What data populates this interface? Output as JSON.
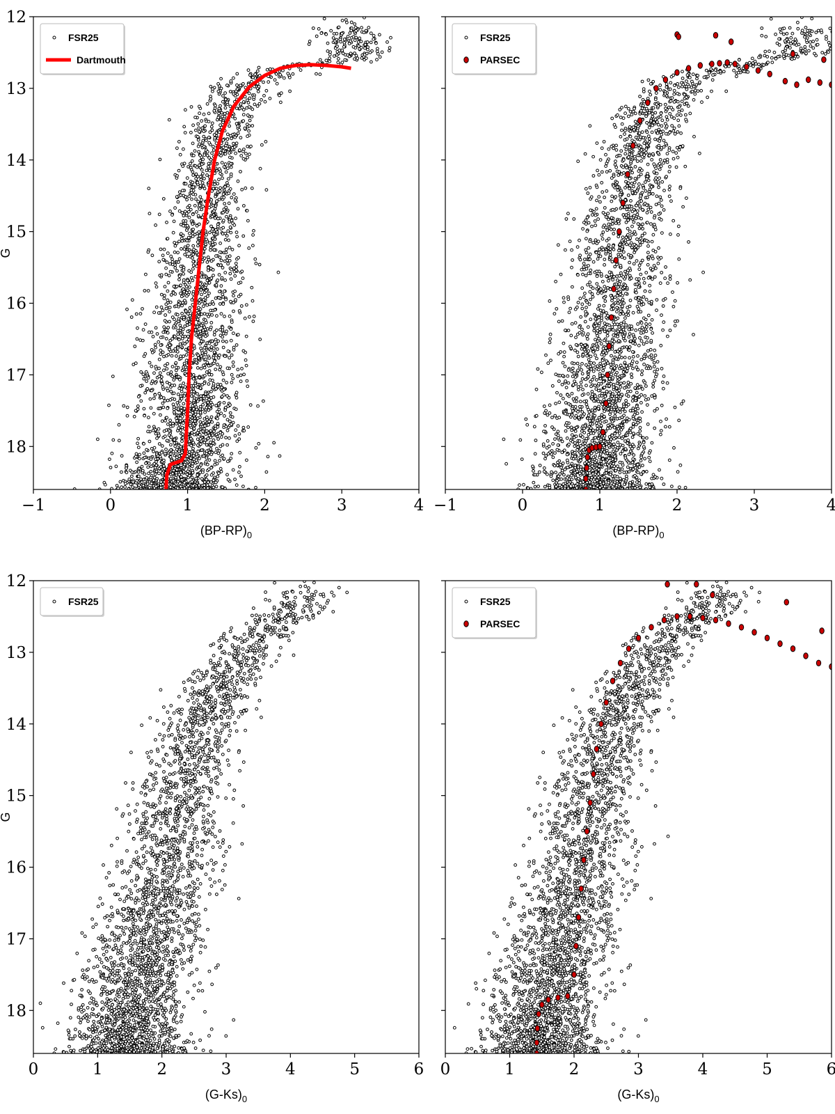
{
  "chart_data": [
    {
      "type": "scatter",
      "panel": "top-left",
      "xlabel": "(BP-RP)",
      "xlabel_sub": "0",
      "ylabel": "G",
      "xlim": [
        -1,
        4
      ],
      "ylim": [
        18.6,
        12
      ],
      "y_inverted": true,
      "xticks": [
        "−1",
        "0",
        "1",
        "2",
        "3",
        "4"
      ],
      "yticks": [
        "12",
        "13",
        "14",
        "15",
        "16",
        "17",
        "18"
      ],
      "legend_position": "top-left",
      "series": [
        {
          "name": "FSR25",
          "kind": "points",
          "color": "#000000",
          "spine": [
            [
              0.8,
              18.6
            ],
            [
              0.85,
              18.3
            ],
            [
              1.0,
              18.0
            ],
            [
              1.05,
              17.0
            ],
            [
              1.12,
              16.0
            ],
            [
              1.2,
              15.0
            ],
            [
              1.3,
              14.0
            ],
            [
              1.5,
              13.3
            ],
            [
              1.8,
              12.9
            ],
            [
              2.4,
              12.7
            ],
            [
              3.1,
              12.6
            ]
          ],
          "spread": 0.28
        },
        {
          "name": "Dartmouth",
          "kind": "line",
          "color": "#ff0000",
          "x": [
            0.72,
            0.73,
            0.78,
            0.92,
            0.97,
            1.0,
            1.02,
            1.05,
            1.1,
            1.15,
            1.2,
            1.27,
            1.35,
            1.45,
            1.6,
            1.8,
            2.0,
            2.2,
            2.4,
            2.6,
            2.8,
            3.0,
            3.12
          ],
          "y": [
            18.6,
            18.4,
            18.25,
            18.2,
            18.1,
            17.5,
            17.0,
            16.5,
            16.0,
            15.5,
            15.0,
            14.5,
            14.0,
            13.6,
            13.25,
            12.98,
            12.82,
            12.72,
            12.68,
            12.67,
            12.68,
            12.7,
            12.72
          ]
        }
      ]
    },
    {
      "type": "scatter",
      "panel": "top-right",
      "xlabel": "(BP-RP)",
      "xlabel_sub": "0",
      "ylabel": "",
      "xlim": [
        -1,
        4
      ],
      "ylim": [
        18.6,
        12
      ],
      "y_inverted": true,
      "xticks": [
        "−1",
        "0",
        "1",
        "2",
        "3",
        "4"
      ],
      "yticks": [],
      "legend_position": "top-left",
      "series": [
        {
          "name": "FSR25",
          "kind": "points",
          "color": "#000000",
          "spine": [
            [
              0.95,
              18.6
            ],
            [
              0.98,
              18.2
            ],
            [
              1.05,
              17.5
            ],
            [
              1.15,
              16.5
            ],
            [
              1.25,
              15.5
            ],
            [
              1.35,
              14.8
            ],
            [
              1.5,
              14.0
            ],
            [
              1.7,
              13.3
            ],
            [
              2.1,
              12.9
            ],
            [
              2.8,
              12.7
            ],
            [
              3.6,
              12.5
            ]
          ],
          "spread": 0.3
        },
        {
          "name": "PARSEC",
          "kind": "markers",
          "color": "#cc0000",
          "x": [
            0.82,
            0.82,
            0.83,
            0.84,
            0.86,
            0.9,
            0.95,
            1.0,
            1.04,
            1.08,
            1.1,
            1.12,
            1.15,
            1.18,
            1.21,
            1.25,
            1.3,
            1.36,
            1.43,
            1.52,
            1.62,
            1.73,
            1.85,
            2.0,
            2.15,
            2.3,
            2.45,
            2.55,
            2.65,
            2.75,
            2.9,
            3.05,
            3.2,
            3.4,
            3.55,
            3.7,
            3.85,
            4.0,
            2.0,
            2.02,
            2.5,
            2.7,
            3.5,
            3.9
          ],
          "y": [
            18.6,
            18.45,
            18.3,
            18.15,
            18.05,
            18.02,
            18.01,
            18.0,
            17.8,
            17.4,
            17.0,
            16.6,
            16.2,
            15.8,
            15.4,
            15.0,
            14.6,
            14.2,
            13.8,
            13.45,
            13.2,
            13.0,
            12.88,
            12.78,
            12.72,
            12.68,
            12.66,
            12.65,
            12.64,
            12.66,
            12.7,
            12.75,
            12.8,
            12.9,
            12.95,
            12.88,
            12.92,
            12.95,
            12.25,
            12.28,
            12.26,
            12.35,
            12.52,
            12.6
          ]
        }
      ]
    },
    {
      "type": "scatter",
      "panel": "bottom-left",
      "xlabel": "(G-Ks)",
      "xlabel_sub": "0",
      "ylabel": "G",
      "xlim": [
        0,
        6
      ],
      "ylim": [
        18.6,
        12
      ],
      "y_inverted": true,
      "xticks": [
        "0",
        "1",
        "2",
        "3",
        "4",
        "5",
        "6"
      ],
      "yticks": [
        "12",
        "13",
        "14",
        "15",
        "16",
        "17",
        "18"
      ],
      "legend_position": "top-left",
      "series": [
        {
          "name": "FSR25",
          "kind": "points",
          "color": "#000000",
          "spine": [
            [
              1.5,
              18.6
            ],
            [
              1.55,
              18.0
            ],
            [
              1.7,
              17.3
            ],
            [
              1.95,
              16.5
            ],
            [
              2.2,
              15.5
            ],
            [
              2.35,
              14.8
            ],
            [
              2.6,
              14.0
            ],
            [
              3.0,
              13.3
            ],
            [
              3.5,
              12.8
            ],
            [
              4.2,
              12.3
            ]
          ],
          "spread": 0.35
        }
      ]
    },
    {
      "type": "scatter",
      "panel": "bottom-right",
      "xlabel": "(G-Ks)",
      "xlabel_sub": "0",
      "ylabel": "",
      "xlim": [
        0,
        6
      ],
      "ylim": [
        18.6,
        12
      ],
      "y_inverted": true,
      "xticks": [
        "0",
        "1",
        "2",
        "3",
        "4",
        "5",
        "6"
      ],
      "yticks": [],
      "legend_position": "top-left",
      "series": [
        {
          "name": "FSR25",
          "kind": "points",
          "color": "#000000",
          "spine": [
            [
              1.5,
              18.6
            ],
            [
              1.55,
              18.0
            ],
            [
              1.7,
              17.3
            ],
            [
              1.95,
              16.5
            ],
            [
              2.2,
              15.5
            ],
            [
              2.35,
              14.8
            ],
            [
              2.6,
              14.0
            ],
            [
              3.0,
              13.3
            ],
            [
              3.5,
              12.8
            ],
            [
              4.2,
              12.3
            ]
          ],
          "spread": 0.35
        },
        {
          "name": "PARSEC",
          "kind": "markers",
          "color": "#cc0000",
          "x": [
            1.42,
            1.42,
            1.43,
            1.45,
            1.5,
            1.6,
            1.75,
            1.9,
            2.0,
            2.03,
            2.07,
            2.11,
            2.15,
            2.2,
            2.25,
            2.3,
            2.35,
            2.42,
            2.5,
            2.6,
            2.72,
            2.85,
            3.0,
            3.2,
            3.4,
            3.6,
            3.8,
            4.0,
            4.2,
            4.4,
            4.6,
            4.8,
            5.0,
            5.2,
            5.4,
            5.6,
            5.8,
            6.0,
            3.45,
            3.9,
            4.15,
            5.3,
            5.85
          ],
          "y": [
            18.6,
            18.45,
            18.25,
            18.05,
            17.92,
            17.85,
            17.82,
            17.8,
            17.5,
            17.1,
            16.7,
            16.3,
            15.9,
            15.5,
            15.1,
            14.7,
            14.35,
            14.0,
            13.7,
            13.4,
            13.15,
            12.95,
            12.8,
            12.65,
            12.55,
            12.5,
            12.5,
            12.52,
            12.55,
            12.6,
            12.65,
            12.72,
            12.8,
            12.88,
            12.95,
            13.05,
            13.15,
            13.2,
            12.05,
            12.05,
            12.2,
            12.3,
            12.7
          ]
        }
      ]
    }
  ]
}
